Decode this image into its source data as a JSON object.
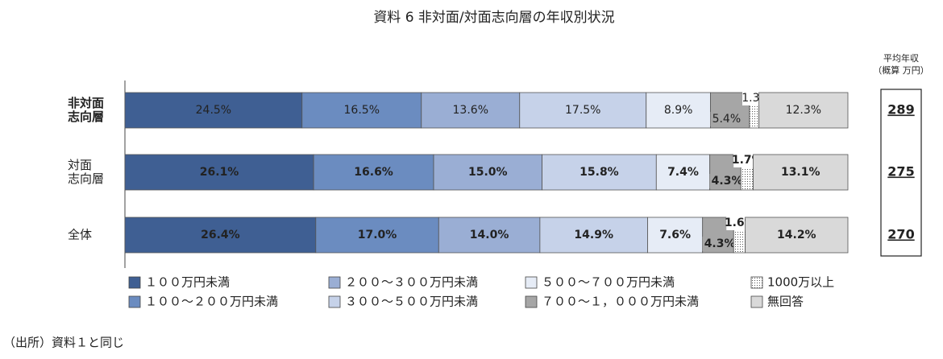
{
  "chart_data": {
    "type": "stacked-bar-horizontal",
    "title": "資料 6 非対面/対面志向層の年収別状況",
    "categories": [
      [
        "非対面",
        "志向層"
      ],
      [
        "対面",
        "志向層"
      ],
      [
        "全体"
      ]
    ],
    "xlim": [
      0,
      100
    ],
    "series": [
      {
        "name": "１００万円未満",
        "color": "#3f5f93",
        "values": [
          24.5,
          26.1,
          26.4
        ],
        "value_labels": [
          "24.5%",
          "26.1%",
          "26.4%"
        ]
      },
      {
        "name": "１００～２００万円未満",
        "color": "#6b8cc0",
        "values": [
          16.5,
          16.6,
          17.0
        ],
        "value_labels": [
          "16.5%",
          "16.6%",
          "17.0%"
        ]
      },
      {
        "name": "２００～３００万円未満",
        "color": "#9aaed4",
        "values": [
          13.6,
          15.0,
          14.0
        ],
        "value_labels": [
          "13.6%",
          "15.0%",
          "14.0%"
        ]
      },
      {
        "name": "３００～５００万円未満",
        "color": "#c6d2e9",
        "values": [
          17.5,
          15.8,
          14.9
        ],
        "value_labels": [
          "17.5%",
          "15.8%",
          "14.9%"
        ]
      },
      {
        "name": "５００～７００万円未満",
        "color": "#e6ecf6",
        "values": [
          8.9,
          7.4,
          7.6
        ],
        "value_labels": [
          "8.9%",
          "7.4%",
          "7.6%"
        ]
      },
      {
        "name": "７００～１，０００万円未満",
        "color": "#a6a6a6",
        "values": [
          5.4,
          4.3,
          4.3
        ],
        "value_labels": [
          "5.4%",
          "4.3%",
          "4.3%"
        ]
      },
      {
        "name": "1000万以上",
        "color": "#ffffff",
        "values": [
          1.3,
          1.7,
          1.6
        ],
        "value_labels": [
          "1.3%",
          "1.7%",
          "1.6%"
        ]
      },
      {
        "name": "無回答",
        "color": "#d9d9d9",
        "values": [
          12.3,
          13.1,
          14.2
        ],
        "value_labels": [
          "12.3%",
          "13.1%",
          "14.2%"
        ]
      }
    ],
    "average_income": {
      "header": [
        "平均年収",
        "（概算 万円）"
      ],
      "values": [
        289,
        275,
        270
      ]
    },
    "source": "（出所）資料１と同じ"
  }
}
